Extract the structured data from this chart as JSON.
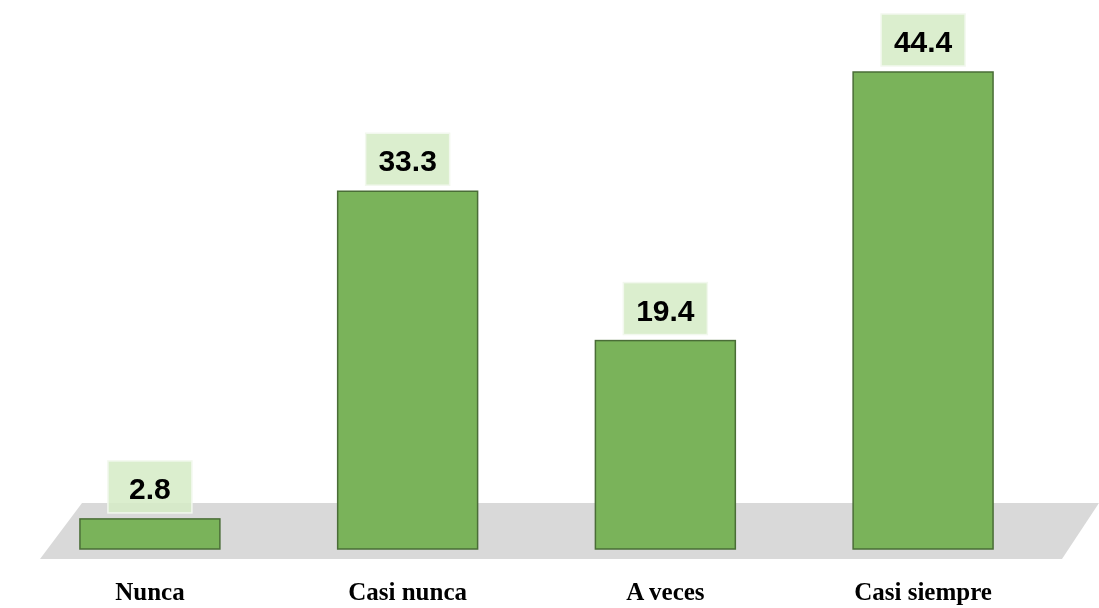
{
  "chart_data": {
    "type": "bar",
    "categories": [
      "Nunca",
      "Casi nunca",
      "A veces",
      "Casi siempre"
    ],
    "values": [
      2.8,
      33.3,
      19.4,
      44.4
    ],
    "color": "#7ab35a",
    "data_labels": true,
    "tick_labels": "x"
  }
}
